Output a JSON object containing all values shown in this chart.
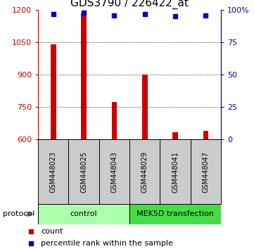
{
  "title": "GDS3790 / 226422_at",
  "samples": [
    "GSM448023",
    "GSM448025",
    "GSM448043",
    "GSM448029",
    "GSM448041",
    "GSM448047"
  ],
  "bar_values": [
    1040,
    1185,
    775,
    900,
    635,
    640
  ],
  "percentile_values": [
    97,
    98,
    96,
    97,
    95,
    96
  ],
  "bar_color": "#cc0000",
  "marker_color": "#0000cc",
  "ylim_left": [
    600,
    1200
  ],
  "ylim_right": [
    0,
    100
  ],
  "yticks_left": [
    600,
    750,
    900,
    1050,
    1200
  ],
  "yticks_right": [
    0,
    25,
    50,
    75,
    100
  ],
  "ytick_labels_right": [
    "0",
    "25",
    "50",
    "75",
    "100%"
  ],
  "grid_values": [
    750,
    900,
    1050
  ],
  "control_label": "control",
  "mek5d_label": "MEK5D transfection",
  "protocol_label": "protocol",
  "legend_count": "count",
  "legend_percentile": "percentile rank within the sample",
  "bar_width": 0.18,
  "sample_box_color": "#cccccc",
  "control_color": "#aaffaa",
  "mek5d_color": "#44dd44",
  "title_fontsize": 11,
  "tick_fontsize": 8,
  "label_fontsize": 8,
  "sample_fontsize": 7,
  "legend_fontsize": 8
}
